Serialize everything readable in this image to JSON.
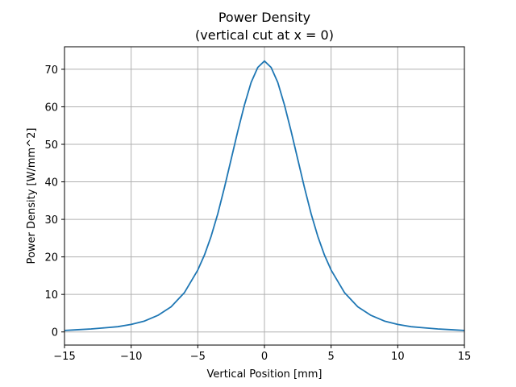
{
  "chart_data": {
    "type": "line",
    "title": "Power Density",
    "subtitle": "(vertical cut at x = 0)",
    "xlabel": "Vertical Position [mm]",
    "ylabel": "Power Density [W/mm^2]",
    "xlim": [
      -15,
      15
    ],
    "ylim": [
      -3.5,
      76
    ],
    "xticks": [
      -15,
      -10,
      -5,
      0,
      5,
      10,
      15
    ],
    "xtick_labels": [
      "−15",
      "−10",
      "−5",
      "0",
      "5",
      "10",
      "15"
    ],
    "yticks": [
      0,
      10,
      20,
      30,
      40,
      50,
      60,
      70
    ],
    "ytick_labels": [
      "0",
      "10",
      "20",
      "30",
      "40",
      "50",
      "60",
      "70"
    ],
    "grid": true,
    "line_color": "#1f77b4",
    "series": [
      {
        "x": [
          -15,
          -14,
          -13,
          -12,
          -11,
          -10,
          -9,
          -8,
          -7,
          -6,
          -5,
          -4.5,
          -4,
          -3.5,
          -3,
          -2.5,
          -2,
          -1.5,
          -1,
          -0.5,
          0,
          0.5,
          1,
          1.5,
          2,
          2.5,
          3,
          3.5,
          4,
          4.5,
          5,
          6,
          7,
          8,
          9,
          10,
          11,
          12,
          13,
          14,
          15
        ],
        "y": [
          0.4,
          0.6,
          0.8,
          1.1,
          1.4,
          2.0,
          2.9,
          4.4,
          6.7,
          10.5,
          16.5,
          20.5,
          25.5,
          31.5,
          38.5,
          46.0,
          53.5,
          60.5,
          66.5,
          70.5,
          72.2,
          70.5,
          66.5,
          60.5,
          53.5,
          46.0,
          38.5,
          31.5,
          25.5,
          20.5,
          16.5,
          10.5,
          6.7,
          4.4,
          2.9,
          2.0,
          1.4,
          1.1,
          0.8,
          0.6,
          0.4
        ]
      }
    ]
  }
}
